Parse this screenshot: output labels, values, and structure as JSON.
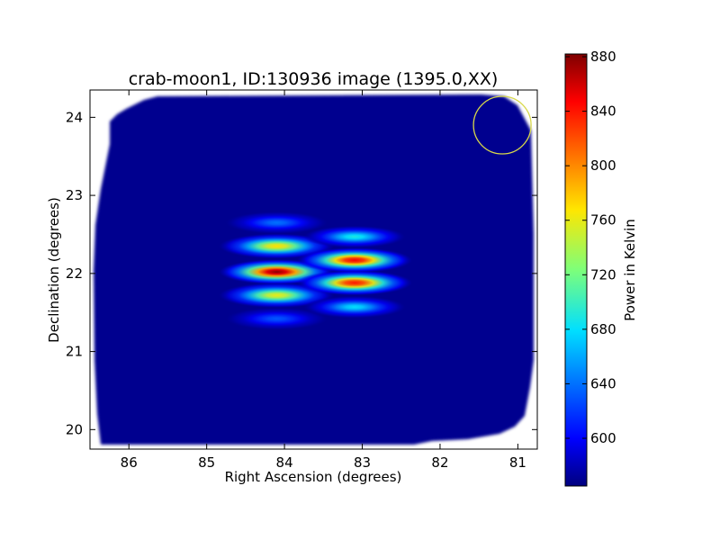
{
  "chart_data": {
    "type": "heatmap",
    "title": "crab-moon1, ID:130936 image (1395.0,XX)",
    "xlabel": "Right Ascension (degrees)",
    "ylabel": "Declination (degrees)",
    "xlim": [
      86.5,
      80.75
    ],
    "ylim": [
      19.75,
      24.35
    ],
    "x_ticks": [
      86,
      85,
      84,
      83,
      82,
      81
    ],
    "y_ticks": [
      20,
      21,
      22,
      23,
      24
    ],
    "colorbar": {
      "label": "Power in Kelvin",
      "range": [
        565,
        882
      ],
      "ticks": [
        600,
        640,
        680,
        720,
        760,
        800,
        840,
        880
      ],
      "colormap": "jet"
    },
    "background_level": 570,
    "sources": [
      {
        "ra": 84.1,
        "dec": 22.02,
        "peak": 880
      },
      {
        "ra": 84.1,
        "dec": 22.35,
        "peak": 770
      },
      {
        "ra": 84.1,
        "dec": 21.72,
        "peak": 760
      },
      {
        "ra": 84.1,
        "dec": 22.65,
        "peak": 640
      },
      {
        "ra": 84.1,
        "dec": 21.42,
        "peak": 630
      },
      {
        "ra": 83.1,
        "dec": 22.17,
        "peak": 850
      },
      {
        "ra": 83.1,
        "dec": 21.88,
        "peak": 840
      },
      {
        "ra": 83.1,
        "dec": 22.47,
        "peak": 690
      },
      {
        "ra": 83.1,
        "dec": 21.57,
        "peak": 680
      }
    ],
    "circle_marker": {
      "ra": 81.2,
      "dec": 23.9,
      "color": "#d8d84a"
    }
  }
}
